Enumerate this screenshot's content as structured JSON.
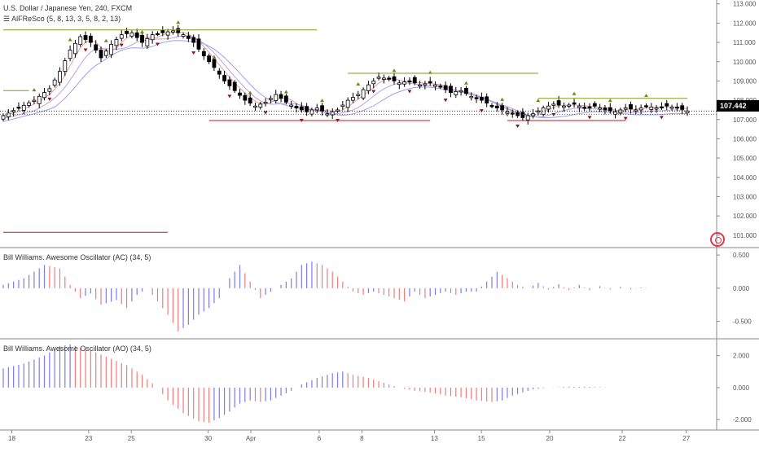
{
  "chart": {
    "symbol_title": "U.S. Dollar / Japanese Yen, 240, FXCM",
    "indicator_alfresco": "AlFReSco (5, 8, 13, 3, 5, 8, 2, 13)",
    "indicator_ac": "Bill Williams. Awesome Oscillator (AC) (34, 5)",
    "indicator_ao": "Bill Williams. Awesome Oscillator (AO) (34, 5)",
    "last_price": "107.442",
    "colors": {
      "bull_body": "#ffffff",
      "bear_body": "#000000",
      "up_histo": "#7b7bf0",
      "down_histo": "#f07b7b",
      "resistance": "#8a9a1a",
      "support": "#b3202a",
      "fractal_up": "#6a8a1a",
      "fractal_down": "#8a1a1a"
    }
  },
  "chart_data": [
    {
      "type": "candlestick",
      "title": "U.S. Dollar / Japanese Yen, 240, FXCM",
      "ylim": [
        100.4,
        113.2
      ],
      "y_ticks": [
        "113.000",
        "112.000",
        "111.000",
        "110.000",
        "109.000",
        "108.000",
        "107.000",
        "106.000",
        "105.000",
        "104.000",
        "103.000",
        "102.000",
        "101.000"
      ],
      "x_tick_labels": [
        "18",
        "23",
        "25",
        "30",
        "Apr",
        "6",
        "8",
        "13",
        "15",
        "20",
        "22",
        "27"
      ],
      "close_path": [
        [
          0,
          107.2
        ],
        [
          3,
          107.6
        ],
        [
          6,
          108.0
        ],
        [
          9,
          108.6
        ],
        [
          11,
          109.5
        ],
        [
          13,
          110.6
        ],
        [
          15,
          111.3
        ],
        [
          17,
          111.0
        ],
        [
          19,
          110.2
        ],
        [
          21,
          110.9
        ],
        [
          23,
          111.4
        ],
        [
          25,
          111.5
        ],
        [
          27,
          111.0
        ],
        [
          29,
          111.4
        ],
        [
          31,
          111.5
        ],
        [
          33,
          111.6
        ],
        [
          35,
          111.4
        ],
        [
          37,
          111.0
        ],
        [
          39,
          110.3
        ],
        [
          41,
          109.7
        ],
        [
          43,
          109.0
        ],
        [
          45,
          108.5
        ],
        [
          47,
          108.0
        ],
        [
          49,
          107.7
        ],
        [
          51,
          107.9
        ],
        [
          53,
          108.3
        ],
        [
          55,
          107.9
        ],
        [
          57,
          107.6
        ],
        [
          59,
          107.4
        ],
        [
          61,
          107.6
        ],
        [
          63,
          107.3
        ],
        [
          65,
          107.5
        ],
        [
          67,
          108.0
        ],
        [
          69,
          108.3
        ],
        [
          71,
          108.8
        ],
        [
          73,
          109.2
        ],
        [
          75,
          109.1
        ],
        [
          77,
          108.9
        ],
        [
          79,
          109.0
        ],
        [
          81,
          108.8
        ],
        [
          83,
          108.9
        ],
        [
          85,
          108.7
        ],
        [
          87,
          108.4
        ],
        [
          89,
          108.5
        ],
        [
          91,
          108.2
        ],
        [
          93,
          108.0
        ],
        [
          95,
          107.7
        ],
        [
          97,
          107.5
        ],
        [
          99,
          107.3
        ],
        [
          101,
          107.1
        ],
        [
          103,
          107.3
        ],
        [
          105,
          107.6
        ],
        [
          107,
          107.8
        ],
        [
          109,
          107.7
        ],
        [
          111,
          107.8
        ],
        [
          113,
          107.6
        ],
        [
          115,
          107.7
        ],
        [
          117,
          107.5
        ],
        [
          119,
          107.4
        ],
        [
          121,
          107.6
        ],
        [
          123,
          107.5
        ],
        [
          125,
          107.7
        ],
        [
          127,
          107.6
        ],
        [
          129,
          107.7
        ],
        [
          131,
          107.6
        ],
        [
          133,
          107.442
        ]
      ],
      "resistance_levels": [
        {
          "price": 111.65,
          "from": 0,
          "to": 61
        },
        {
          "price": 109.4,
          "from": 67,
          "to": 104
        },
        {
          "price": 108.5,
          "from": 0,
          "to": 5
        },
        {
          "price": 108.1,
          "from": 104,
          "to": 133
        }
      ],
      "support_levels": [
        {
          "price": 106.95,
          "from": 40,
          "to": 83
        },
        {
          "price": 106.95,
          "from": 98,
          "to": 121
        },
        {
          "price": 101.15,
          "from": 0,
          "to": 32
        }
      ]
    },
    {
      "type": "bar",
      "title": "Bill Williams. Awesome Oscillator (AC) (34, 5)",
      "ylim": [
        -0.75,
        0.6
      ],
      "y_ticks": [
        "0.500",
        "0.000",
        "-0.500"
      ],
      "shape": [
        [
          0,
          0.05
        ],
        [
          4,
          0.15
        ],
        [
          8,
          0.35
        ],
        [
          11,
          0.3
        ],
        [
          13,
          0.05
        ],
        [
          15,
          -0.15
        ],
        [
          17,
          -0.08
        ],
        [
          19,
          -0.25
        ],
        [
          22,
          -0.18
        ],
        [
          24,
          -0.3
        ],
        [
          26,
          -0.1
        ],
        [
          28,
          0.0
        ],
        [
          30,
          -0.2
        ],
        [
          32,
          -0.4
        ],
        [
          34,
          -0.65
        ],
        [
          36,
          -0.55
        ],
        [
          38,
          -0.4
        ],
        [
          40,
          -0.3
        ],
        [
          42,
          -0.15
        ],
        [
          44,
          0.15
        ],
        [
          46,
          0.35
        ],
        [
          48,
          0.1
        ],
        [
          50,
          -0.15
        ],
        [
          52,
          -0.05
        ],
        [
          54,
          0.05
        ],
        [
          56,
          0.15
        ],
        [
          58,
          0.35
        ],
        [
          60,
          0.4
        ],
        [
          62,
          0.35
        ],
        [
          64,
          0.25
        ],
        [
          66,
          0.1
        ],
        [
          68,
          -0.05
        ],
        [
          70,
          -0.1
        ],
        [
          72,
          -0.05
        ],
        [
          74,
          -0.1
        ],
        [
          76,
          -0.15
        ],
        [
          78,
          -0.2
        ],
        [
          80,
          -0.05
        ],
        [
          82,
          -0.15
        ],
        [
          84,
          -0.1
        ],
        [
          86,
          -0.05
        ],
        [
          88,
          -0.1
        ],
        [
          90,
          -0.05
        ],
        [
          92,
          -0.05
        ],
        [
          94,
          0.1
        ],
        [
          96,
          0.25
        ],
        [
          98,
          0.15
        ],
        [
          100,
          0.05
        ],
        [
          102,
          0.0
        ],
        [
          104,
          0.08
        ],
        [
          106,
          -0.02
        ],
        [
          108,
          0.06
        ],
        [
          110,
          -0.03
        ],
        [
          112,
          0.05
        ],
        [
          114,
          -0.03
        ],
        [
          116,
          0.03
        ],
        [
          118,
          -0.02
        ],
        [
          120,
          0.02
        ],
        [
          122,
          -0.02
        ],
        [
          124,
          0.01
        ],
        [
          126,
          0.0
        ],
        [
          128,
          0.0
        ],
        [
          133,
          0.0
        ]
      ]
    },
    {
      "type": "bar",
      "title": "Bill Williams. Awesome Oscillator (AO) (34, 5)",
      "ylim": [
        -2.6,
        3.0
      ],
      "y_ticks": [
        "2.000",
        "0.000",
        "-2.000"
      ],
      "shape": [
        [
          0,
          1.2
        ],
        [
          4,
          1.5
        ],
        [
          8,
          2.0
        ],
        [
          11,
          2.6
        ],
        [
          13,
          2.7
        ],
        [
          15,
          2.5
        ],
        [
          18,
          2.2
        ],
        [
          21,
          1.8
        ],
        [
          24,
          1.4
        ],
        [
          27,
          0.8
        ],
        [
          30,
          0.0
        ],
        [
          32,
          -0.8
        ],
        [
          35,
          -1.6
        ],
        [
          38,
          -2.1
        ],
        [
          40,
          -2.2
        ],
        [
          42,
          -1.9
        ],
        [
          44,
          -1.5
        ],
        [
          46,
          -1.0
        ],
        [
          48,
          -0.8
        ],
        [
          50,
          -0.9
        ],
        [
          52,
          -0.8
        ],
        [
          54,
          -0.5
        ],
        [
          56,
          -0.2
        ],
        [
          58,
          0.2
        ],
        [
          61,
          0.6
        ],
        [
          64,
          0.9
        ],
        [
          66,
          1.0
        ],
        [
          68,
          0.8
        ],
        [
          71,
          0.6
        ],
        [
          74,
          0.3
        ],
        [
          77,
          0.0
        ],
        [
          80,
          -0.2
        ],
        [
          83,
          -0.3
        ],
        [
          86,
          -0.5
        ],
        [
          89,
          -0.6
        ],
        [
          92,
          -0.8
        ],
        [
          95,
          -0.9
        ],
        [
          97,
          -0.8
        ],
        [
          99,
          -0.5
        ],
        [
          101,
          -0.3
        ],
        [
          103,
          -0.1
        ],
        [
          106,
          0.0
        ],
        [
          110,
          0.05
        ],
        [
          114,
          0.05
        ],
        [
          118,
          0.0
        ],
        [
          122,
          0.0
        ],
        [
          126,
          0.0
        ],
        [
          133,
          0.0
        ]
      ]
    }
  ]
}
